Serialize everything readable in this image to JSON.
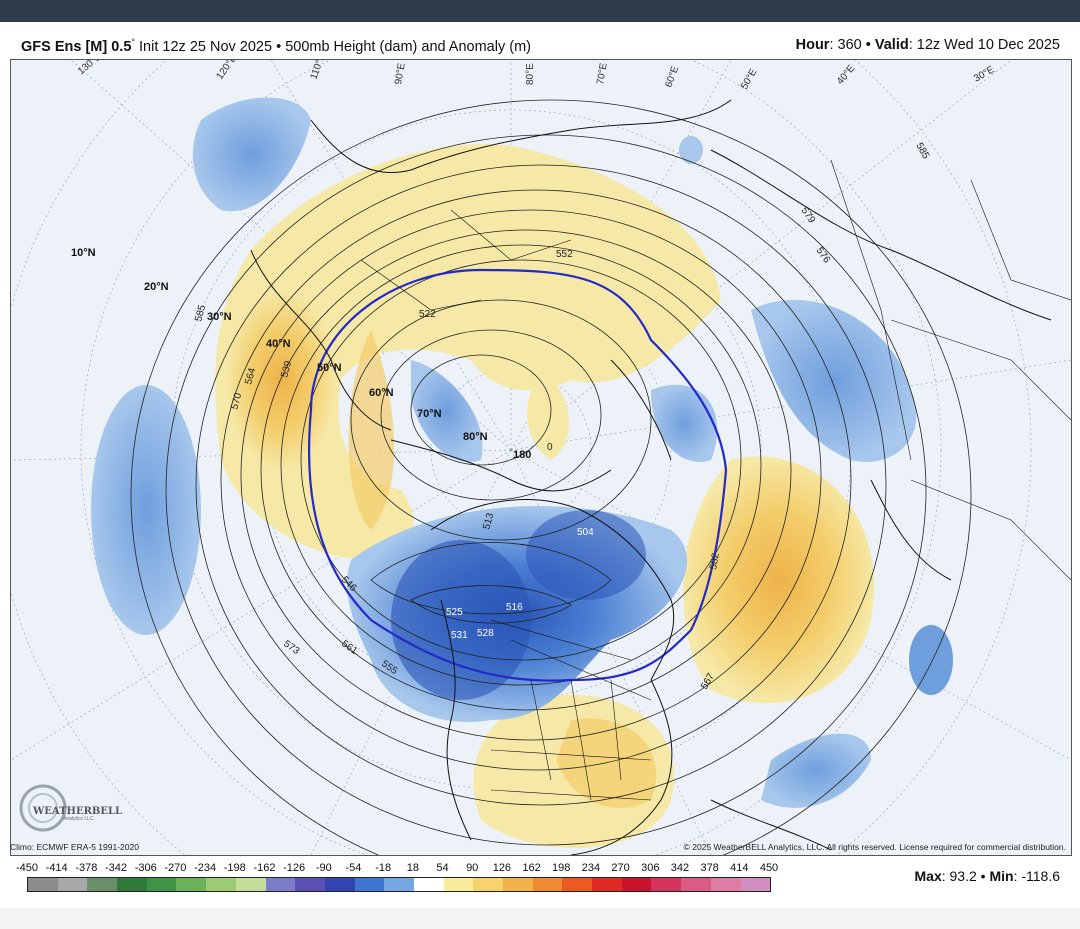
{
  "header": {
    "model": "GFS Ens [M] 0.5",
    "degree_symbol": "°",
    "init_prefix": "Init",
    "init_value": "12z 25 Nov 2025",
    "separator": "•",
    "product": "500mb Height (dam) and Anomaly (m)",
    "hour_label": "Hour",
    "hour_value": ": 360",
    "valid_label": "Valid",
    "valid_value": ": 12z Wed 10 Dec 2025"
  },
  "map": {
    "latitude_labels": [
      "10°N",
      "20°N",
      "30°N",
      "40°N",
      "50°N",
      "60°N",
      "70°N",
      "80°N"
    ],
    "longitude_labels": [
      "130°E",
      "120°E",
      "110°E",
      "90°E",
      "80°E",
      "70°E",
      "60°E",
      "50°E",
      "40°E",
      "30°E"
    ],
    "center_label": "180",
    "contour_labels": [
      "585",
      "579",
      "576",
      "552",
      "522",
      "564",
      "570",
      "539",
      "585",
      "513",
      "504",
      "516",
      "531",
      "528",
      "525",
      "573",
      "561",
      "555",
      "546",
      "567",
      "582",
      "0"
    ],
    "anomaly_colors": {
      "positive_weak": "#f4e79a",
      "positive_mid": "#f3cd6a",
      "positive_strong": "#eeb24a",
      "negative_weak": "#a7c7ec",
      "negative_mid": "#6f9edd",
      "negative_strong": "#2a55b8",
      "normal_contour_blue": "#2229c8"
    },
    "logo_text": "WEATHERBELL",
    "logo_subtext": "Analytics LLC"
  },
  "footer": {
    "climo": "Climo: ECMWF ERA-5 1991-2020",
    "copyright": "© 2025 WeatherBELL Analytics, LLC. All rights reserved. License required for commercial distribution.",
    "max_label": "Max",
    "max_value": ": 93.2",
    "min_label": "Min",
    "min_value": ": -118.6"
  },
  "scale": {
    "labels": [
      "-450",
      "-414",
      "-378",
      "-342",
      "-306",
      "-270",
      "-234",
      "-198",
      "-162",
      "-126",
      "-90",
      "-54",
      "-18",
      "18",
      "54",
      "90",
      "126",
      "162",
      "198",
      "234",
      "270",
      "306",
      "342",
      "378",
      "414",
      "450"
    ],
    "colors": [
      "#8c8c8c",
      "#a8a8a8",
      "#6a8f6a",
      "#2f7a3a",
      "#3f9346",
      "#6bb35a",
      "#9bcc74",
      "#c5de9b",
      "#7d7dc7",
      "#5a4fb3",
      "#3344b0",
      "#3f76d0",
      "#74a6e4",
      "#ffffff",
      "#f9ec9b",
      "#f6d36e",
      "#f2b24a",
      "#f08a33",
      "#ec5a23",
      "#e12a24",
      "#c9142c",
      "#d5345f",
      "#da5c86",
      "#dd7ca4",
      "#cf8fc0"
    ]
  }
}
